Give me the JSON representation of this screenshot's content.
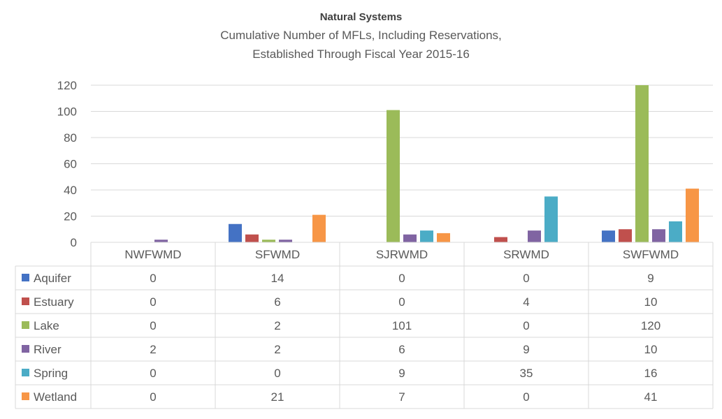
{
  "chart_data": {
    "type": "bar",
    "title": "Natural Systems",
    "subtitle": [
      "Cumulative Number of MFLs, Including Reservations,",
      "Established Through Fiscal Year 2015-16"
    ],
    "categories": [
      "NWFWMD",
      "SFWMD",
      "SJRWMD",
      "SRWMD",
      "SWFWMD"
    ],
    "series": [
      {
        "name": "Aquifer",
        "color": "#4472c4",
        "values": [
          0,
          14,
          0,
          0,
          9
        ]
      },
      {
        "name": "Estuary",
        "color": "#c0504d",
        "values": [
          0,
          6,
          0,
          4,
          10
        ]
      },
      {
        "name": "Lake",
        "color": "#9bbb59",
        "values": [
          0,
          2,
          101,
          0,
          120
        ]
      },
      {
        "name": "River",
        "color": "#8064a2",
        "values": [
          2,
          2,
          6,
          9,
          10
        ]
      },
      {
        "name": "Spring",
        "color": "#4bacc6",
        "values": [
          0,
          0,
          9,
          35,
          16
        ]
      },
      {
        "name": "Wetland",
        "color": "#f79646",
        "values": [
          0,
          21,
          7,
          0,
          41
        ]
      }
    ],
    "yticks": [
      0,
      20,
      40,
      60,
      80,
      100,
      120
    ],
    "ylim": [
      0,
      120
    ],
    "grid": true,
    "legend": "data-table"
  }
}
